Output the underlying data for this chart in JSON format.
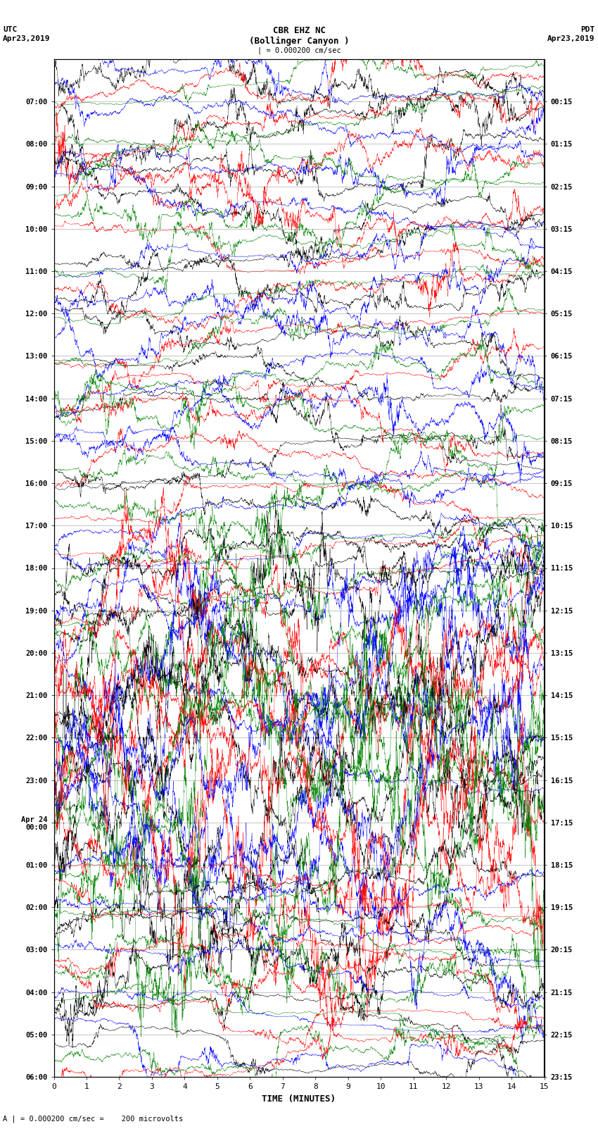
{
  "title_line1": "CBR EHZ NC",
  "title_line2": "(Bollinger Canyon )",
  "title_line3": "| = 0.000200 cm/sec",
  "xlabel": "TIME (MINUTES)",
  "bottom_note": "A | = 0.000200 cm/sec =    200 microvolts",
  "utc_times": [
    "07:00",
    "08:00",
    "09:00",
    "10:00",
    "11:00",
    "12:00",
    "13:00",
    "14:00",
    "15:00",
    "16:00",
    "17:00",
    "18:00",
    "19:00",
    "20:00",
    "21:00",
    "22:00",
    "23:00",
    "Apr 24\n00:00",
    "01:00",
    "02:00",
    "03:00",
    "04:00",
    "05:00",
    "06:00"
  ],
  "pdt_times": [
    "00:15",
    "01:15",
    "02:15",
    "03:15",
    "04:15",
    "05:15",
    "06:15",
    "07:15",
    "08:15",
    "09:15",
    "10:15",
    "11:15",
    "12:15",
    "13:15",
    "14:15",
    "15:15",
    "16:15",
    "17:15",
    "18:15",
    "19:15",
    "20:15",
    "21:15",
    "22:15",
    "23:15"
  ],
  "n_rows": 24,
  "n_minutes": 15,
  "colors": [
    "black",
    "red",
    "blue",
    "green"
  ],
  "bg_color": "white",
  "figsize": [
    8.5,
    16.13
  ],
  "dpi": 100,
  "seed": 42,
  "activity_levels": [
    1.0,
    1.2,
    1.1,
    1.3,
    1.0,
    1.1,
    1.2,
    1.0,
    1.3,
    1.1,
    1.2,
    1.0,
    1.3,
    3.5,
    4.0,
    4.5,
    3.8,
    5.0,
    5.5,
    1.2,
    1.1,
    1.3,
    1.0,
    1.1
  ]
}
